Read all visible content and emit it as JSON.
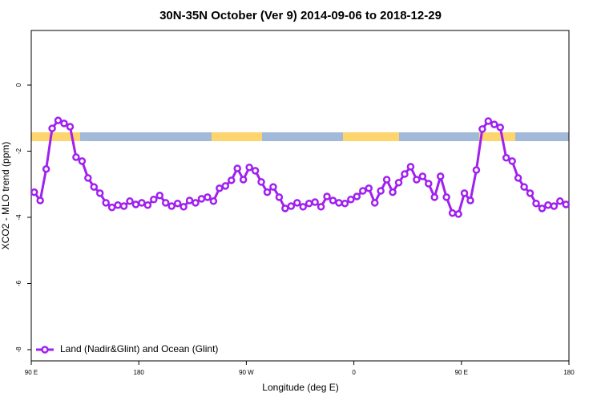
{
  "chart_data": {
    "type": "line",
    "title": "30N-35N October (Ver 9)   2014-09-06 to 2018-12-29",
    "x_label": "Longitude (deg E)",
    "y_label": "XCO2 - MLO trend (ppm)",
    "xlim": [
      90,
      540
    ],
    "ylim": [
      -8.34,
      1.65
    ],
    "xticks": [
      {
        "value": 90,
        "label": "90 E"
      },
      180,
      {
        "value": 270,
        "label": "90 W"
      },
      {
        "value": 360,
        "label": "0"
      },
      {
        "value": 450,
        "label": "90 E"
      },
      {
        "value": 540,
        "label": "180"
      }
    ],
    "yticks": [
      -8,
      -6,
      -4,
      -2,
      0
    ],
    "legend": "bottom-left",
    "x": [
      92.5,
      97.5,
      102.5,
      107.5,
      112.5,
      117.5,
      122.5,
      127.5,
      132.5,
      137.5,
      142.5,
      147.5,
      152.5,
      157.5,
      162.5,
      167.5,
      172.5,
      177.5,
      182.5,
      187.5,
      192.5,
      197.5,
      202.5,
      207.5,
      212.5,
      217.5,
      222.5,
      227.5,
      232.5,
      237.5,
      242.5,
      247.5,
      252.5,
      257.5,
      262.5,
      267.5,
      272.5,
      277.5,
      282.5,
      287.5,
      292.5,
      297.5,
      302.5,
      307.5,
      312.5,
      317.5,
      322.5,
      327.5,
      332.5,
      337.5,
      342.5,
      347.5,
      352.5,
      357.5,
      362.5,
      367.5,
      372.5,
      377.5,
      382.5,
      387.5,
      392.5,
      397.5,
      402.5,
      407.5,
      412.5,
      417.5,
      422.5,
      427.5,
      432.5,
      437.5,
      442.5,
      447.5,
      452.5,
      457.5,
      462.5,
      467.5,
      472.5,
      477.5,
      482.5,
      487.5,
      492.5,
      497.5,
      502.5,
      507.5,
      512.5,
      517.5,
      522.5,
      527.5,
      532.5,
      537.5
    ],
    "series": [
      {
        "name": "Land (Nadir&Glint) and Ocean (Glint)",
        "color": "#a020f0",
        "values": [
          -3.24,
          -3.49,
          -2.54,
          -1.31,
          -1.07,
          -1.16,
          -1.26,
          -2.18,
          -2.3,
          -2.81,
          -3.08,
          -3.27,
          -3.56,
          -3.7,
          -3.63,
          -3.66,
          -3.51,
          -3.61,
          -3.56,
          -3.63,
          -3.46,
          -3.34,
          -3.56,
          -3.66,
          -3.58,
          -3.68,
          -3.49,
          -3.56,
          -3.44,
          -3.39,
          -3.51,
          -3.12,
          -3.05,
          -2.88,
          -2.52,
          -2.86,
          -2.49,
          -2.59,
          -2.93,
          -3.24,
          -3.08,
          -3.39,
          -3.73,
          -3.66,
          -3.56,
          -3.68,
          -3.58,
          -3.54,
          -3.68,
          -3.37,
          -3.49,
          -3.56,
          -3.58,
          -3.46,
          -3.37,
          -3.2,
          -3.12,
          -3.56,
          -3.2,
          -2.86,
          -3.24,
          -2.95,
          -2.69,
          -2.47,
          -2.86,
          -2.76,
          -2.98,
          -3.39,
          -2.76,
          -3.39,
          -3.87,
          -3.9,
          -3.27,
          -3.49,
          -2.57,
          -1.33,
          -1.09,
          -1.19,
          -1.28,
          -2.2,
          -2.3,
          -2.81,
          -3.08,
          -3.27,
          -3.58,
          -3.73,
          -3.63,
          -3.66,
          -3.51,
          -3.61
        ]
      }
    ]
  }
}
